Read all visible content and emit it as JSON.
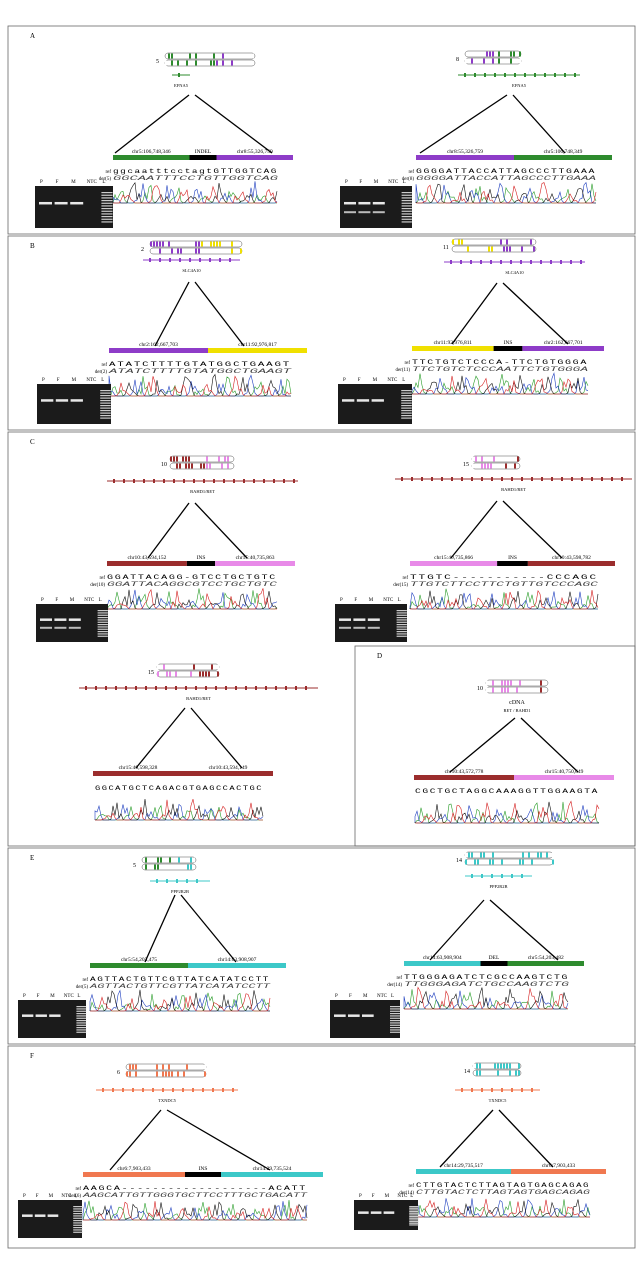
{
  "colors": {
    "green": "#2e8b2e",
    "purple": "#8e3cc8",
    "yellow": "#f0e000",
    "darkred": "#9b2d2d",
    "pink": "#e88ae8",
    "teal": "#3cc8c8",
    "orange": "#f07850",
    "black": "#000000"
  },
  "gel_lanes": [
    "P",
    "F",
    "M",
    "NTC",
    "L"
  ],
  "panels": [
    {
      "letter": "A",
      "left": {
        "chrom_num": "5",
        "gene": "EFNA5",
        "bar_left_label": "chr5:106,748,346",
        "middle_label": "INDEL",
        "bar_right_label": "chr8:55,326,759",
        "seq_row1_label": "ref",
        "seq_row2_label": "der(5)",
        "seq_ref": "ggcaatttcctagtGTTGGTCAG",
        "seq_der": "GGCAATTTCCTGTTGGTCAG"
      },
      "right": {
        "chrom_num": "8",
        "gene": "EFNA5",
        "bar_left_label": "chr8:55,326,759",
        "bar_right_label": "chr5:106,748,349",
        "seq_row1_label": "ref",
        "seq_row2_label": "der(8)",
        "seq_ref": "GGGGATTACCATTAGCCCTTGAAA",
        "seq_der": "GGGGATTACCATTAGCCCTTGAAA"
      }
    },
    {
      "letter": "B",
      "left": {
        "chrom_num": "2",
        "gene": "SLC4A10",
        "bar_left_label": "chr2:162,667,703",
        "bar_right_label": "chr11:92,976,817",
        "seq_row1_label": "ref",
        "seq_row2_label": "der(2)",
        "seq_ref": "ATATCTTTTGTATGGCTGAAGT",
        "seq_der": "ATATCTTTTGTATGGCTGAAGT"
      },
      "right": {
        "chrom_num": "11",
        "gene": "SLC4A10",
        "bar_left_label": "chr11:92,976,811",
        "middle_label": "INS",
        "bar_right_label": "chr2:162,667,701",
        "seq_row1_label": "ref",
        "seq_row2_label": "der(11)",
        "seq_ref": "TTCTGTCTCCCA-TTCTGTGGGA",
        "seq_der": "TTCTGTCTCCCAATTCTGTGGGA"
      }
    },
    {
      "letter": "C",
      "left": {
        "chrom_num": "10",
        "gene": "BAHD1/RET",
        "bar_left_label": "chr10:43,594,152",
        "middle_label": "INS",
        "bar_right_label": "chr15:40,735,863",
        "seq_row1_label": "ref",
        "seq_row2_label": "der(10)",
        "seq_ref": "GGATTACAGG-GTCCTGCTGTC",
        "seq_der": "GGATTACAGGCGTCCTGCTGTC"
      },
      "right": {
        "chrom_num": "15",
        "gene": "BAHD1/RET",
        "bar_left_label": "chr15:40,735,866",
        "middle_label": "INS",
        "bar_right_label": "chr10:43,598,782",
        "seq_row1_label": "ref",
        "seq_row2_label": "der(15)",
        "seq_ref": "TTGTC-----------CCCAGC",
        "seq_der": "TTGTCTTCCTTCTGTTGTCCCAGC"
      },
      "bottom": {
        "chrom_num": "15",
        "gene": "BAHD1/RET",
        "bar_left_label": "chr15:40,598,328",
        "bar_right_label": "chr10:43,594,149",
        "seq_ref": "GGCATGCTCAGACGTGAGCCACTGC"
      }
    },
    {
      "letter": "D",
      "chrom_num": "10",
      "title": "cDNA",
      "gene": "RET / BAHD1",
      "bar_left_label": "chr10:43,572,778",
      "bar_right_label": "chr15:40,750,649",
      "seq_ref": "CGCTGCTAGGCAAAGGTTGGAAGTA"
    },
    {
      "letter": "E",
      "left": {
        "chrom_num": "5",
        "gene": "PPP2R2B",
        "bar_left_label": "chr5:54,203,475",
        "bar_right_label": "chr14:63,908,907",
        "seq_row1_label": "ref",
        "seq_row2_label": "der(5)",
        "seq_ref": "AGTTACTGTTCGTTATCATATCCTT",
        "seq_der": "AGTTACTGTTCGTTATCATATCCTT"
      },
      "right": {
        "chrom_num": "14",
        "gene": "PPP2R2B",
        "bar_left_label": "chr14:63,908,904",
        "middle_label": "DEL",
        "bar_right_label": "chr5:54,203,482",
        "seq_row1_label": "ref",
        "seq_row2_label": "der(14)",
        "seq_ref": "TTGGGAGATCTCGCCAAGTCTG",
        "seq_der": "TTGGGAGATCTGCCAAGTCTG"
      }
    },
    {
      "letter": "F",
      "left": {
        "chrom_num": "6",
        "gene": "TXNDC5",
        "bar_left_label": "chr6:7,903,433",
        "middle_label": "INS",
        "bar_right_label": "chr14:29,735,524",
        "seq_row1_label": "ref",
        "seq_row2_label": "der(6)",
        "seq_ref": "AAGCA-------------------ACATT",
        "seq_der": "AAGCATTGTTGGGTGCTTCCTTTGCTGACATT"
      },
      "right": {
        "chrom_num": "14",
        "gene": "TXNDC5",
        "bar_left_label": "chr14:29,735,517",
        "bar_right_label": "chr6:7,903,433",
        "seq_row1_label": "ref",
        "seq_row2_label": "der(14)",
        "seq_ref": "CTTGTACTCTTAGTAGTGAGCAGAG",
        "seq_der": "CTTGTACTCTTAGTAGTGAGCAGAG"
      }
    }
  ]
}
